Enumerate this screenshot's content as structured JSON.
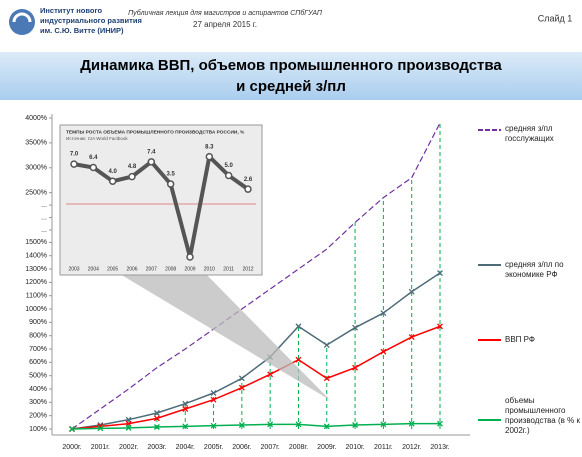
{
  "header": {
    "institute": "Институт нового индустриального развития им. С.Ю. Витте (ИНИР)",
    "lecture": "Публичная лекция для магистров и аспирантов СПбГУАП",
    "date": "27 апреля 2015 г.",
    "slide": "Слайд 1"
  },
  "chart_data": [
    {
      "type": "line",
      "title": "Динамика ВВП, объемов промышленного производства и средней з/пл",
      "categories": [
        "2000г.",
        "2001г.",
        "2002г.",
        "2003г.",
        "2004г.",
        "2005г.",
        "2006г.",
        "2007г.",
        "2008г.",
        "2009г.",
        "2010г.",
        "2011г.",
        "2012г.",
        "2013г."
      ],
      "ylim": [
        100,
        4000
      ],
      "ybreak": 1500,
      "yticks": [
        {
          "value": 100,
          "label": "100%"
        },
        {
          "value": 200,
          "label": "200%"
        },
        {
          "value": 300,
          "label": "300%"
        },
        {
          "value": 400,
          "label": "400%"
        },
        {
          "value": 500,
          "label": "500%"
        },
        {
          "value": 600,
          "label": "600%"
        },
        {
          "value": 700,
          "label": "700%"
        },
        {
          "value": 800,
          "label": "800%"
        },
        {
          "value": 900,
          "label": "900%"
        },
        {
          "value": 1000,
          "label": "1000%"
        },
        {
          "value": 1100,
          "label": "1100%"
        },
        {
          "value": 1200,
          "label": "1200%"
        },
        {
          "value": 1300,
          "label": "1300%"
        },
        {
          "value": 1400,
          "label": "1400%"
        },
        {
          "value": 1500,
          "label": "1500%"
        },
        {
          "value": 1750,
          "label": "..."
        },
        {
          "value": 2000,
          "label": "..."
        },
        {
          "value": 2250,
          "label": "..."
        },
        {
          "value": 2500,
          "label": "2500%"
        },
        {
          "value": 3000,
          "label": "3000%"
        },
        {
          "value": 3500,
          "label": "3500%"
        },
        {
          "value": 4000,
          "label": "4000%"
        }
      ],
      "series": [
        {
          "name": "средняя з/пл госслужащих",
          "color": "#7030a0",
          "dashed": true,
          "values": [
            100,
            250,
            400,
            560,
            700,
            850,
            1000,
            1150,
            1300,
            1450,
            1900,
            2400,
            2800,
            3900
          ]
        },
        {
          "name": "средняя з/пл по экономике РФ",
          "color": "#4f6b7a",
          "values": [
            100,
            130,
            170,
            220,
            290,
            370,
            480,
            640,
            870,
            730,
            860,
            970,
            1130,
            1270
          ]
        },
        {
          "name": "ВВП РФ",
          "color": "#ff0000",
          "values": [
            100,
            120,
            140,
            180,
            250,
            320,
            410,
            510,
            620,
            480,
            560,
            680,
            790,
            870
          ]
        },
        {
          "name": "объемы промышленного производства (в % к 2002г.)",
          "color": "#00b050",
          "values": [
            100,
            105,
            108,
            115,
            120,
            125,
            130,
            135,
            135,
            120,
            130,
            135,
            140,
            140
          ]
        }
      ]
    },
    {
      "type": "line",
      "title": "ТЕМПЫ РОСТА ОБЪЕМА ПРОМЫШЛЕННОГО ПРОИЗВОДСТВА РОССИИ, %",
      "subtitle": "Источник: CIA World Factbook",
      "categories": [
        "2003",
        "2004",
        "2005",
        "2006",
        "2007",
        "2008",
        "2009",
        "2010",
        "2011",
        "2012"
      ],
      "values": [
        7.0,
        6.4,
        4.0,
        4.8,
        7.4,
        3.5,
        -9.3,
        8.3,
        5.0,
        2.6
      ],
      "value_labels": [
        "7.0",
        "6.4",
        "4.0",
        "4.8",
        "7.4",
        "3.5",
        null,
        "8.3",
        "5.0",
        "2.6"
      ],
      "ylim": [
        -10,
        10
      ],
      "color": "#555555"
    }
  ]
}
